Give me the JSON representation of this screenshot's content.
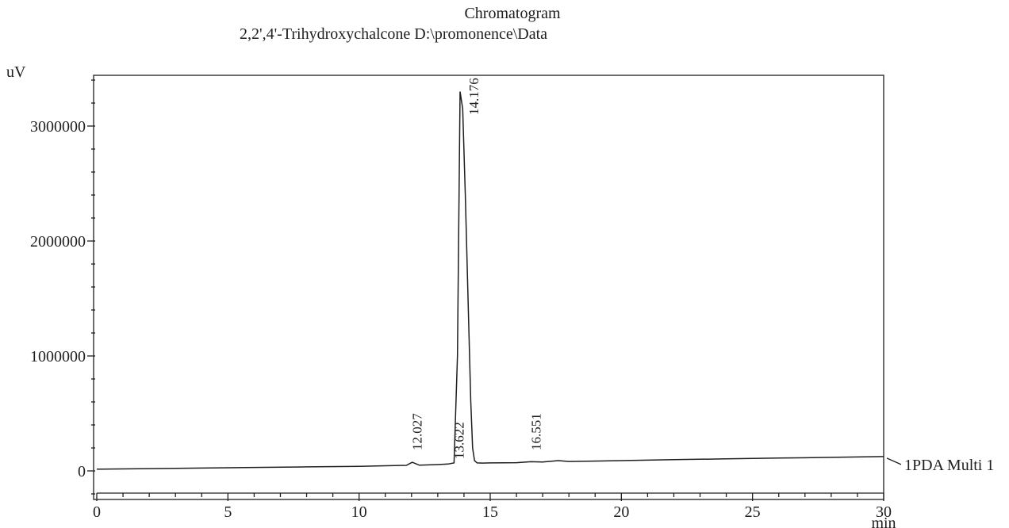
{
  "chart_data": {
    "type": "line",
    "title": "Chromatogram",
    "subtitle": "2,2',4'-Trihydroxychalcone D:\\promonence\\Data",
    "ylabel": "uV",
    "xlabel": "min",
    "xlim": [
      0,
      30
    ],
    "ylim": [
      -350000,
      3450000
    ],
    "y_ticks": [
      0,
      1000000,
      2000000,
      3000000
    ],
    "y_tick_labels": [
      "0",
      "1000000",
      "2000000",
      "3000000"
    ],
    "x_ticks": [
      0,
      5,
      10,
      15,
      20,
      25,
      30
    ],
    "x_tick_labels": [
      "0",
      "5",
      "10",
      "15",
      "20",
      "25",
      "30"
    ],
    "series": [
      {
        "name": "1PDA Multi 1",
        "x": [
          0,
          2,
          4,
          6,
          8,
          10,
          11,
          11.8,
          12.027,
          12.3,
          13,
          13.4,
          13.622,
          13.75,
          13.85,
          13.95,
          14.05,
          14.176,
          14.26,
          14.33,
          14.4,
          14.5,
          14.7,
          15,
          16,
          16.551,
          17,
          17.6,
          18,
          20,
          22,
          24,
          26,
          28,
          30
        ],
        "y": [
          15000,
          20000,
          25000,
          30000,
          35000,
          40000,
          45000,
          48000,
          75000,
          50000,
          55000,
          60000,
          70000,
          1000000,
          3300000,
          3150000,
          2400000,
          1300000,
          600000,
          200000,
          90000,
          70000,
          68000,
          70000,
          72000,
          80000,
          77000,
          90000,
          82000,
          90000,
          98000,
          105000,
          112000,
          118000,
          125000
        ]
      }
    ],
    "peaks": [
      {
        "rt": 12.027,
        "label": "12.027"
      },
      {
        "rt": 13.622,
        "label": "13.622"
      },
      {
        "rt": 14.176,
        "label": "14.176"
      },
      {
        "rt": 16.551,
        "label": "16.551"
      }
    ]
  }
}
